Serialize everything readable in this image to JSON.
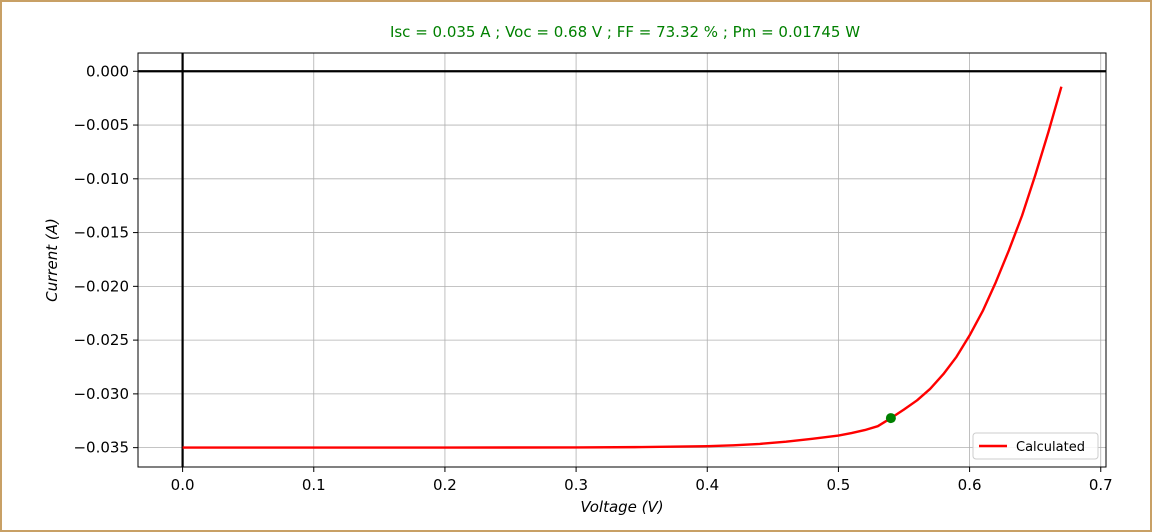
{
  "chart_data": {
    "type": "line",
    "title": "Isc = 0.035 A ; Voc = 0.68 V ; FF = 73.32 % ; Pm = 0.01745 W",
    "title_color": "#008000",
    "xlabel": "Voltage (V)",
    "ylabel": "Current (A)",
    "xlim": [
      -0.034,
      0.704
    ],
    "ylim": [
      -0.0368,
      0.0017
    ],
    "x_ticks": [
      0.0,
      0.1,
      0.2,
      0.3,
      0.4,
      0.5,
      0.6,
      0.7
    ],
    "x_tick_labels": [
      "0.0",
      "0.1",
      "0.2",
      "0.3",
      "0.4",
      "0.5",
      "0.6",
      "0.7"
    ],
    "y_ticks": [
      0.0,
      -0.005,
      -0.01,
      -0.015,
      -0.02,
      -0.025,
      -0.03,
      -0.035
    ],
    "y_tick_labels": [
      "0.000",
      "−0.005",
      "−0.010",
      "−0.015",
      "−0.020",
      "−0.025",
      "−0.030",
      "−0.035"
    ],
    "grid": true,
    "legend_position": "bottom-right",
    "series": [
      {
        "name": "Calculated",
        "color": "#ff0000",
        "x": [
          0.0,
          0.1,
          0.2,
          0.3,
          0.35,
          0.4,
          0.42,
          0.44,
          0.46,
          0.48,
          0.5,
          0.51,
          0.52,
          0.53,
          0.54,
          0.55,
          0.56,
          0.57,
          0.58,
          0.59,
          0.6,
          0.61,
          0.62,
          0.63,
          0.64,
          0.65,
          0.66,
          0.67
        ],
        "y": [
          -0.035,
          -0.035,
          -0.035,
          -0.03498,
          -0.03495,
          -0.03487,
          -0.03478,
          -0.03465,
          -0.03445,
          -0.03418,
          -0.03388,
          -0.03365,
          -0.03337,
          -0.03301,
          -0.03225,
          -0.03145,
          -0.0306,
          -0.02953,
          -0.02816,
          -0.02655,
          -0.02456,
          -0.0223,
          -0.01961,
          -0.01665,
          -0.01341,
          -0.00968,
          -0.00568,
          -0.00143
        ]
      }
    ],
    "mpp": {
      "x": 0.54,
      "y": -0.03225,
      "color": "#008000"
    }
  }
}
